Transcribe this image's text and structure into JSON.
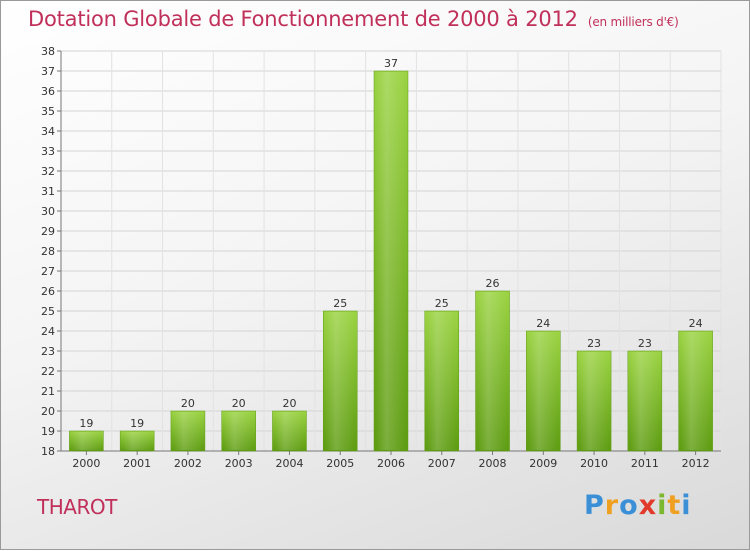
{
  "title": "Dotation Globale de Fonctionnement de 2000 à 2012",
  "units": "(en milliers d'€)",
  "commune": "THAROT",
  "logo": "Proxiti",
  "chart_data": {
    "type": "bar",
    "categories": [
      "2000",
      "2001",
      "2002",
      "2003",
      "2004",
      "2005",
      "2006",
      "2007",
      "2008",
      "2009",
      "2010",
      "2011",
      "2012"
    ],
    "values": [
      19,
      19,
      20,
      20,
      20,
      25,
      37,
      25,
      26,
      24,
      23,
      23,
      24
    ],
    "ylim": [
      18,
      38
    ],
    "yticks": [
      18,
      19,
      20,
      21,
      22,
      23,
      24,
      25,
      26,
      27,
      28,
      29,
      30,
      31,
      32,
      33,
      34,
      35,
      36,
      37,
      38
    ],
    "grid": true,
    "bar_color": "#7cb82f",
    "title_color": "#c0305a"
  }
}
